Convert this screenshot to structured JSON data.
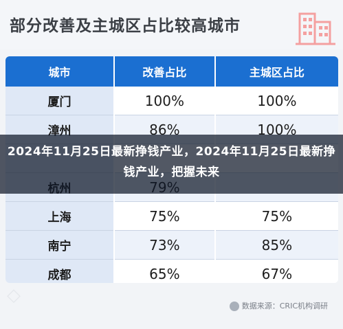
{
  "header": {
    "title": "部分改善及主城区占比较高城市"
  },
  "table": {
    "columns": [
      "城市",
      "改善占比",
      "主城区占比"
    ],
    "rows": [
      [
        "厦门",
        "100%",
        "100%"
      ],
      [
        "漳州",
        "86%",
        "100%"
      ],
      [
        "",
        "",
        ""
      ],
      [
        "杭州",
        "79%",
        ""
      ],
      [
        "上海",
        "75%",
        "75%"
      ],
      [
        "南宁",
        "73%",
        "85%"
      ],
      [
        "成都",
        "65%",
        "67%"
      ]
    ]
  },
  "source": {
    "text": "数据来源：CRIC机构调研"
  },
  "overlay": {
    "text": "2024年11月25日最新挣钱产业，2024年11月25日最新挣钱产业，把握未来"
  },
  "colors": {
    "header_blue": "#1b6fd1",
    "city_cell": "#dfe8f6",
    "overlay": "#0f1828"
  },
  "icons": [
    "building-icon",
    "source-logo-icon"
  ]
}
